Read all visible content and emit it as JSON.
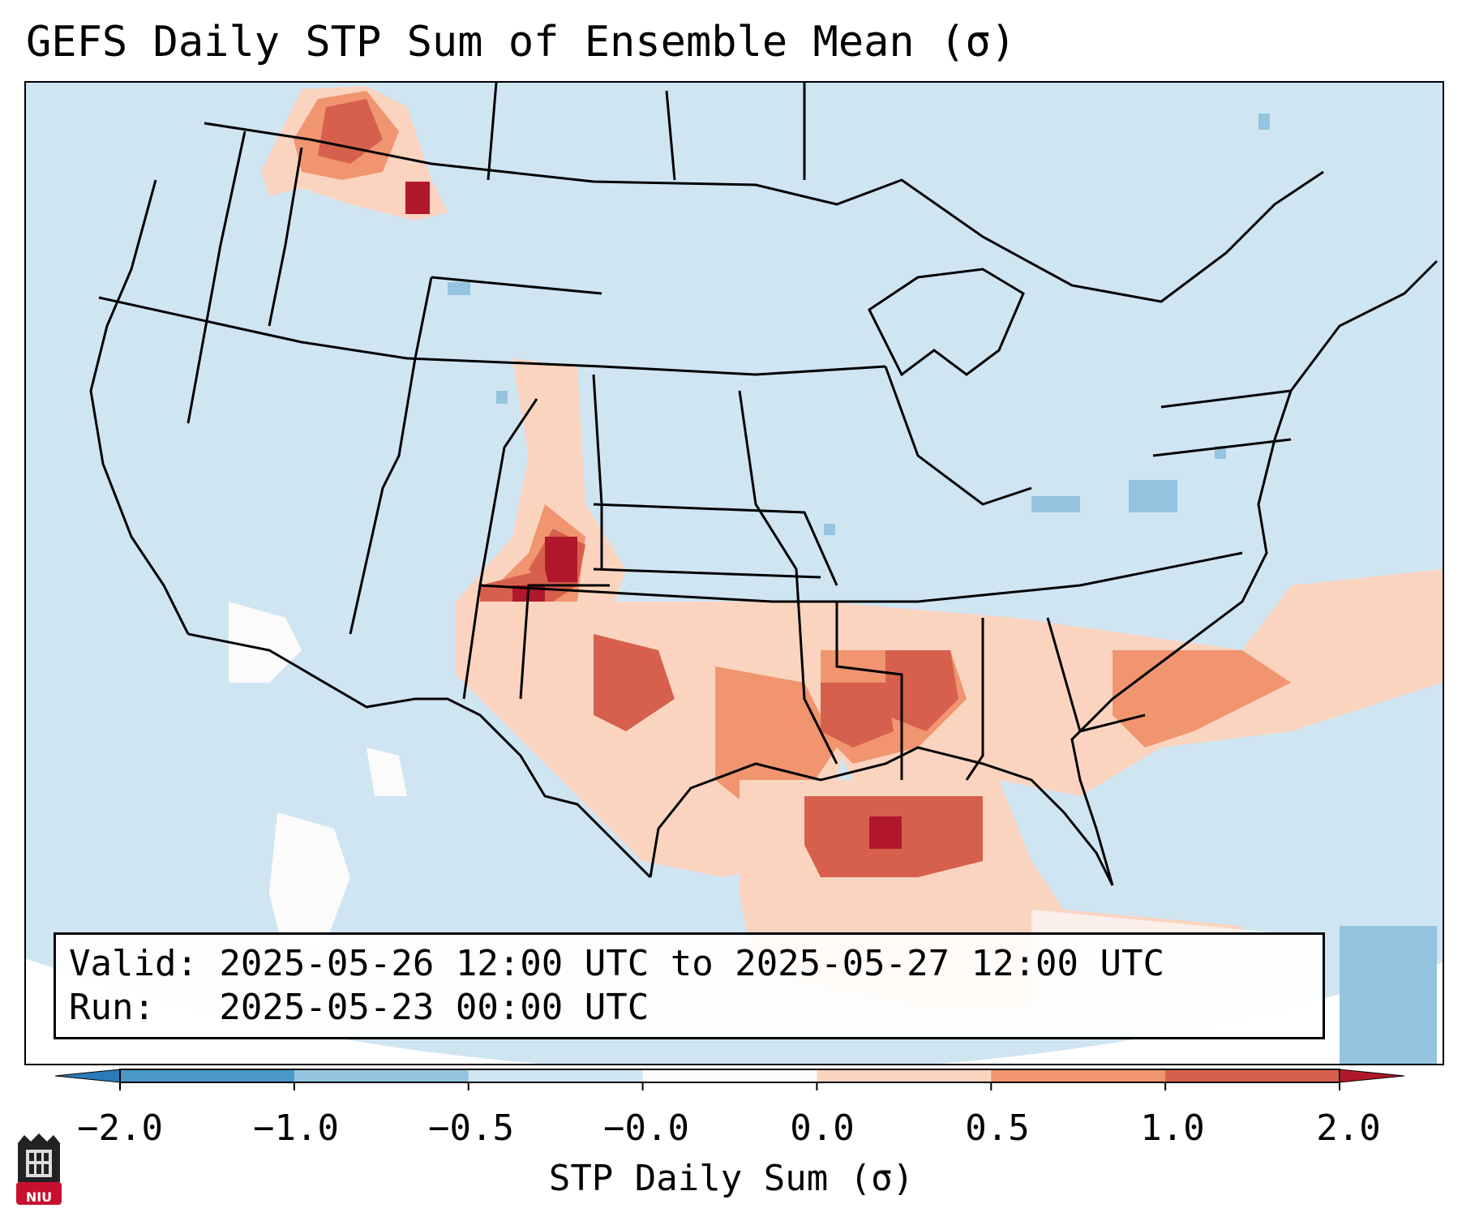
{
  "title": "GEFS Daily STP Sum of Ensemble Mean (σ)",
  "info": {
    "valid_line": "Valid: 2025-05-26 12:00 UTC to 2025-05-27 12:00 UTC",
    "run_line": "Run:   2025-05-23 00:00 UTC"
  },
  "colorbar": {
    "label": "STP Daily Sum (σ)",
    "tick_labels": [
      "−2.0",
      "−1.0",
      "−0.5",
      "−0.0",
      "0.0",
      "0.5",
      "1.0",
      "2.0"
    ],
    "bins": [
      {
        "color": "#2b7bba"
      },
      {
        "color": "#4a98c9"
      },
      {
        "color": "#94c4df"
      },
      {
        "color": "#d0e5f2"
      },
      {
        "color": "#fbfbfb"
      },
      {
        "color": "#fbd4c0"
      },
      {
        "color": "#f0956f"
      },
      {
        "color": "#d6604d"
      },
      {
        "color": "#b2182b"
      }
    ]
  },
  "map_colors": {
    "background": "#d0e5f2",
    "neutral": "#fbfbfb",
    "light_red": "#fbd4c0",
    "mid_red": "#f0956f",
    "red": "#d6604d",
    "dark_red": "#b2182b",
    "light_blue": "#94c4df",
    "borders": "#000000"
  },
  "logo": {
    "text": "NIU",
    "icon": "niu-logo-icon",
    "color": "#c8102e"
  }
}
